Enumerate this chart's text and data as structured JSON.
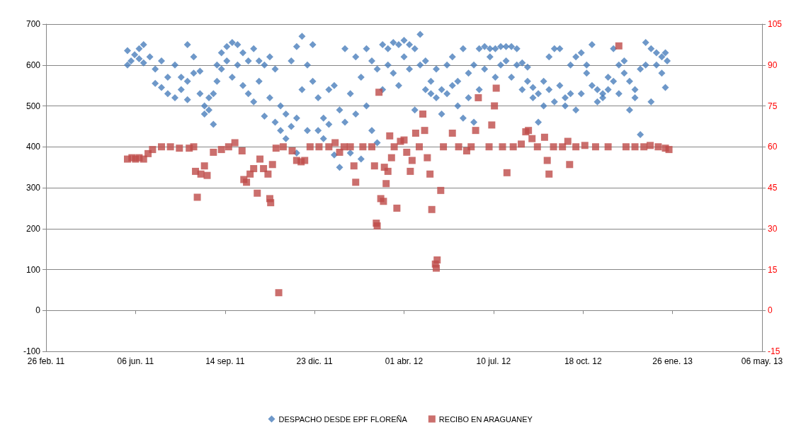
{
  "chart_data": {
    "type": "scatter",
    "grid": "y",
    "legend": "bottom",
    "xlim": [
      "2011-02-26",
      "2013-05-06"
    ],
    "xticks": [
      {
        "value": "2011-02-26",
        "label": "26 feb. 11"
      },
      {
        "value": "2011-06-06",
        "label": "06 jun. 11"
      },
      {
        "value": "2011-09-14",
        "label": "14 sep. 11"
      },
      {
        "value": "2011-12-23",
        "label": "23 dic. 11"
      },
      {
        "value": "2012-04-01",
        "label": "01 abr. 12"
      },
      {
        "value": "2012-07-10",
        "label": "10 jul. 12"
      },
      {
        "value": "2012-10-18",
        "label": "18 oct. 12"
      },
      {
        "value": "2013-01-26",
        "label": "26 ene. 13"
      },
      {
        "value": "2013-05-06",
        "label": "06 may. 13"
      }
    ],
    "ylim": [
      -100,
      700
    ],
    "yticks": [
      -100,
      0,
      100,
      200,
      300,
      400,
      500,
      600,
      700
    ],
    "y2lim": [
      -15,
      105
    ],
    "y2ticks": [
      -15,
      0,
      15,
      30,
      45,
      60,
      75,
      90,
      105
    ],
    "series": [
      {
        "name": "DESPACHO DESDE EPF FLOREÑA",
        "color": "#4a7ebb",
        "marker": "diamond",
        "x": [
          "2011-05-28",
          "2011-05-28",
          "2011-06-01",
          "2011-06-05",
          "2011-06-10",
          "2011-06-10",
          "2011-06-15",
          "2011-06-15",
          "2011-06-22",
          "2011-06-28",
          "2011-06-28",
          "2011-07-05",
          "2011-07-05",
          "2011-07-12",
          "2011-07-12",
          "2011-07-20",
          "2011-07-20",
          "2011-07-27",
          "2011-07-27",
          "2011-08-03",
          "2011-08-03",
          "2011-08-03",
          "2011-08-10",
          "2011-08-10",
          "2011-08-17",
          "2011-08-17",
          "2011-08-22",
          "2011-08-22",
          "2011-08-27",
          "2011-08-27",
          "2011-09-01",
          "2011-09-01",
          "2011-09-05",
          "2011-09-05",
          "2011-09-10",
          "2011-09-10",
          "2011-09-16",
          "2011-09-16",
          "2011-09-22",
          "2011-09-22",
          "2011-09-28",
          "2011-09-28",
          "2011-10-04",
          "2011-10-04",
          "2011-10-10",
          "2011-10-10",
          "2011-10-16",
          "2011-10-16",
          "2011-10-22",
          "2011-10-22",
          "2011-10-28",
          "2011-10-28",
          "2011-11-03",
          "2011-11-03",
          "2011-11-09",
          "2011-11-09",
          "2011-11-15",
          "2011-11-15",
          "2011-11-21",
          "2011-11-21",
          "2011-11-27",
          "2011-11-27",
          "2011-12-03",
          "2011-12-03",
          "2011-12-03",
          "2011-12-09",
          "2011-12-09",
          "2011-12-15",
          "2011-12-15",
          "2011-12-21",
          "2011-12-21",
          "2011-12-27",
          "2011-12-27",
          "2012-01-02",
          "2012-01-02",
          "2012-01-08",
          "2012-01-08",
          "2012-01-14",
          "2012-01-14",
          "2012-01-20",
          "2012-01-20",
          "2012-01-26",
          "2012-01-26",
          "2012-02-01",
          "2012-02-01",
          "2012-02-07",
          "2012-02-07",
          "2012-02-13",
          "2012-02-13",
          "2012-02-19",
          "2012-02-19",
          "2012-02-25",
          "2012-02-25",
          "2012-03-02",
          "2012-03-02",
          "2012-03-08",
          "2012-03-08",
          "2012-03-14",
          "2012-03-14",
          "2012-03-20",
          "2012-03-20",
          "2012-03-26",
          "2012-03-26",
          "2012-04-01",
          "2012-04-01",
          "2012-04-07",
          "2012-04-07",
          "2012-04-13",
          "2012-04-13",
          "2012-04-19",
          "2012-04-19",
          "2012-04-25",
          "2012-04-25",
          "2012-05-01",
          "2012-05-01",
          "2012-05-07",
          "2012-05-07",
          "2012-05-13",
          "2012-05-13",
          "2012-05-19",
          "2012-05-19",
          "2012-05-25",
          "2012-05-25",
          "2012-05-31",
          "2012-05-31",
          "2012-06-06",
          "2012-06-06",
          "2012-06-12",
          "2012-06-12",
          "2012-06-18",
          "2012-06-18",
          "2012-06-24",
          "2012-06-24",
          "2012-06-30",
          "2012-06-30",
          "2012-07-06",
          "2012-07-06",
          "2012-07-12",
          "2012-07-12",
          "2012-07-18",
          "2012-07-18",
          "2012-07-24",
          "2012-07-24",
          "2012-07-30",
          "2012-07-30",
          "2012-08-05",
          "2012-08-05",
          "2012-08-11",
          "2012-08-11",
          "2012-08-17",
          "2012-08-17",
          "2012-08-23",
          "2012-08-23",
          "2012-08-29",
          "2012-08-29",
          "2012-09-04",
          "2012-09-04",
          "2012-09-10",
          "2012-09-10",
          "2012-09-16",
          "2012-09-16",
          "2012-09-22",
          "2012-09-22",
          "2012-09-28",
          "2012-09-28",
          "2012-10-04",
          "2012-10-04",
          "2012-10-10",
          "2012-10-10",
          "2012-10-16",
          "2012-10-16",
          "2012-10-22",
          "2012-10-22",
          "2012-10-28",
          "2012-10-28",
          "2012-11-03",
          "2012-11-03",
          "2012-11-09",
          "2012-11-09",
          "2012-11-15",
          "2012-11-15",
          "2012-11-21",
          "2012-11-21",
          "2012-11-27",
          "2012-11-27",
          "2012-12-03",
          "2012-12-03",
          "2012-12-09",
          "2012-12-09",
          "2012-12-15",
          "2012-12-15",
          "2012-12-21",
          "2012-12-21",
          "2012-12-27",
          "2012-12-27",
          "2013-01-02",
          "2013-01-02",
          "2013-01-08",
          "2013-01-08",
          "2013-01-14",
          "2013-01-14",
          "2013-01-18",
          "2013-01-18",
          "2013-01-20"
        ],
        "values": [
          635,
          600,
          610,
          625,
          615,
          640,
          605,
          650,
          620,
          590,
          555,
          610,
          545,
          570,
          530,
          600,
          520,
          570,
          540,
          650,
          560,
          515,
          620,
          580,
          585,
          530,
          500,
          480,
          490,
          520,
          530,
          455,
          560,
          600,
          630,
          590,
          645,
          610,
          655,
          570,
          650,
          600,
          630,
          550,
          610,
          530,
          640,
          510,
          610,
          560,
          600,
          475,
          620,
          520,
          590,
          460,
          500,
          440,
          480,
          420,
          610,
          450,
          645,
          470,
          385,
          670,
          540,
          600,
          440,
          650,
          560,
          520,
          440,
          470,
          420,
          455,
          540,
          550,
          380,
          490,
          350,
          640,
          460,
          530,
          385,
          620,
          480,
          570,
          370,
          640,
          500,
          610,
          440,
          590,
          410,
          650,
          540,
          640,
          600,
          655,
          580,
          650,
          550,
          660,
          620,
          650,
          590,
          640,
          490,
          675,
          600,
          610,
          540,
          560,
          530,
          590,
          520,
          540,
          480,
          600,
          530,
          620,
          550,
          560,
          500,
          640,
          470,
          520,
          580,
          600,
          460,
          640,
          540,
          645,
          590,
          640,
          620,
          640,
          570,
          645,
          600,
          645,
          610,
          645,
          570,
          640,
          600,
          605,
          540,
          595,
          560,
          545,
          520,
          530,
          460,
          560,
          500,
          620,
          540,
          640,
          510,
          640,
          550,
          520,
          500,
          600,
          530,
          620,
          490,
          630,
          530,
          600,
          580,
          650,
          550,
          540,
          510,
          530,
          520,
          570,
          540,
          640,
          560,
          600,
          530,
          610,
          580,
          490,
          560,
          540,
          520,
          430,
          590,
          655,
          600,
          640,
          510,
          630,
          600,
          620,
          580,
          630,
          545,
          610
        ]
      },
      {
        "name": "RECIBO EN ARAGUANEY",
        "color": "#be4b48",
        "marker": "square",
        "axis": "y2",
        "x": [
          "2011-05-28",
          "2011-06-02",
          "2011-06-06",
          "2011-06-10",
          "2011-06-15",
          "2011-06-20",
          "2011-06-25",
          "2011-07-05",
          "2011-07-15",
          "2011-07-25",
          "2011-08-05",
          "2011-08-10",
          "2011-08-12",
          "2011-08-14",
          "2011-08-18",
          "2011-08-22",
          "2011-08-25",
          "2011-09-01",
          "2011-09-10",
          "2011-09-18",
          "2011-09-25",
          "2011-10-03",
          "2011-10-05",
          "2011-10-08",
          "2011-10-12",
          "2011-10-16",
          "2011-10-20",
          "2011-10-23",
          "2011-10-27",
          "2011-11-01",
          "2011-11-03",
          "2011-11-04",
          "2011-11-06",
          "2011-11-10",
          "2011-11-13",
          "2011-11-18",
          "2011-11-28",
          "2011-12-03",
          "2011-12-08",
          "2011-12-12",
          "2011-12-18",
          "2011-12-28",
          "2012-01-08",
          "2012-01-15",
          "2012-01-20",
          "2012-01-25",
          "2012-02-01",
          "2012-02-05",
          "2012-02-07",
          "2012-02-15",
          "2012-02-25",
          "2012-02-28",
          "2012-03-01",
          "2012-03-02",
          "2012-03-04",
          "2012-03-06",
          "2012-03-09",
          "2012-03-10",
          "2012-03-12",
          "2012-03-14",
          "2012-03-16",
          "2012-03-18",
          "2012-03-21",
          "2012-03-24",
          "2012-03-28",
          "2012-04-01",
          "2012-04-04",
          "2012-04-08",
          "2012-04-10",
          "2012-04-14",
          "2012-04-18",
          "2012-04-22",
          "2012-04-24",
          "2012-04-27",
          "2012-04-30",
          "2012-05-02",
          "2012-05-06",
          "2012-05-07",
          "2012-05-08",
          "2012-05-12",
          "2012-05-15",
          "2012-05-25",
          "2012-06-01",
          "2012-06-10",
          "2012-06-15",
          "2012-06-20",
          "2012-06-23",
          "2012-07-05",
          "2012-07-08",
          "2012-07-11",
          "2012-07-13",
          "2012-07-20",
          "2012-07-25",
          "2012-08-01",
          "2012-08-10",
          "2012-08-15",
          "2012-08-18",
          "2012-08-22",
          "2012-08-28",
          "2012-09-05",
          "2012-09-08",
          "2012-09-10",
          "2012-09-15",
          "2012-09-25",
          "2012-10-01",
          "2012-10-03",
          "2012-10-10",
          "2012-10-20",
          "2012-11-01",
          "2012-11-15",
          "2012-11-27",
          "2012-12-05",
          "2012-12-15",
          "2012-12-25",
          "2013-01-01",
          "2013-01-10",
          "2013-01-18",
          "2013-01-22"
        ],
        "values": [
          55.5,
          56,
          55.5,
          56,
          55.5,
          57.5,
          59,
          60,
          60,
          59.5,
          59.5,
          60,
          51,
          41.5,
          50,
          53,
          49.5,
          58,
          59,
          60,
          61.5,
          58.5,
          48,
          47,
          50,
          52,
          43,
          55.5,
          52,
          50,
          41,
          39.5,
          53.5,
          59.5,
          6.5,
          60,
          58.5,
          55,
          54.5,
          55,
          60,
          60,
          60,
          61.5,
          58,
          60,
          60,
          53,
          47,
          60,
          60,
          53,
          32,
          31,
          80,
          41,
          40,
          52.5,
          46.5,
          51,
          64,
          56,
          60,
          37.5,
          62,
          62.5,
          58,
          51,
          55,
          65,
          60,
          72,
          66,
          56,
          50,
          37,
          17,
          15.5,
          18.5,
          44,
          60,
          65,
          60,
          58.5,
          60,
          66,
          78,
          60,
          68,
          75,
          81.5,
          60,
          50.5,
          60,
          61,
          65.5,
          66,
          63,
          60,
          63.5,
          55,
          50,
          60,
          60,
          62,
          53.5,
          60,
          60.5,
          60,
          60,
          97,
          60,
          60,
          60,
          60.5,
          60,
          59.5,
          59
        ]
      }
    ]
  }
}
